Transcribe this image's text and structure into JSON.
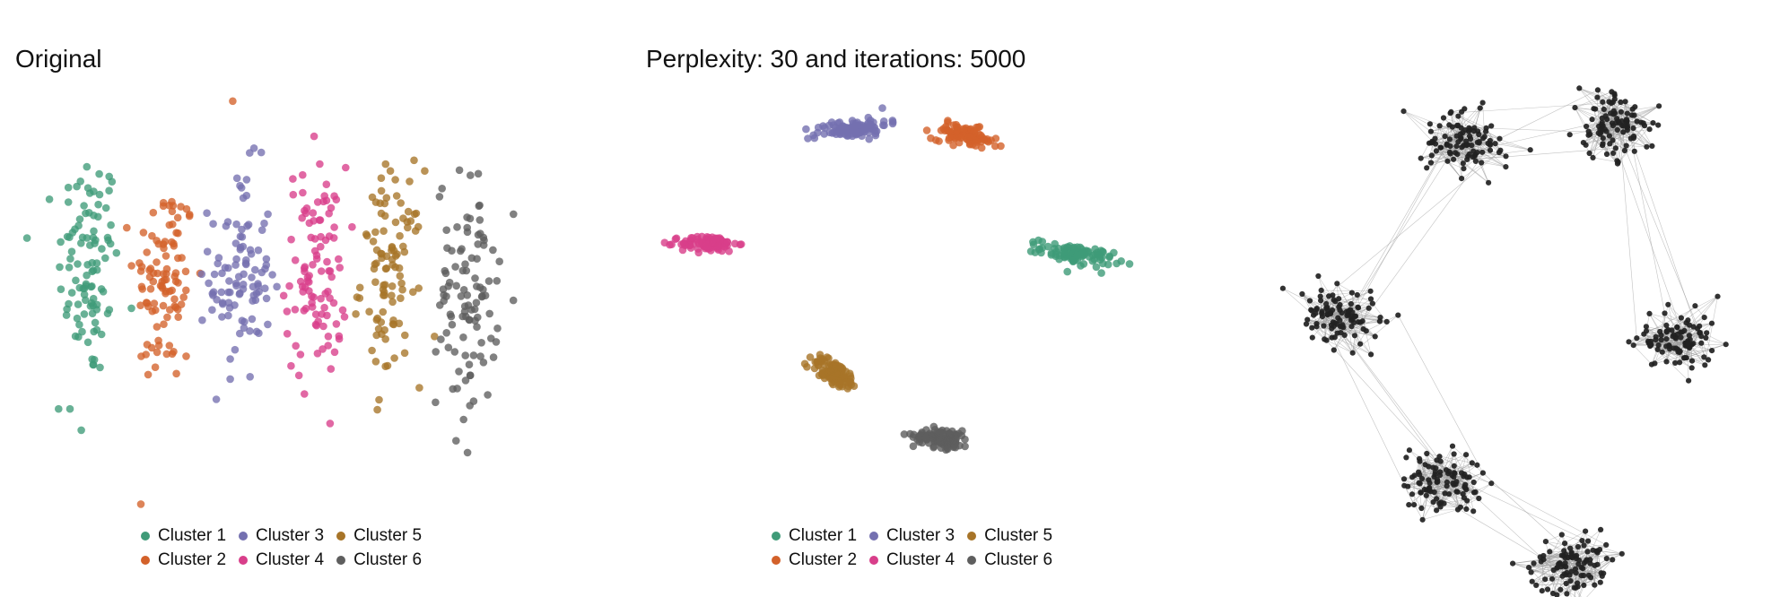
{
  "colors": {
    "Cluster 1": "#3f9b78",
    "Cluster 2": "#d3612a",
    "Cluster 3": "#7470b0",
    "Cluster 4": "#d83e8a",
    "Cluster 5": "#a77428",
    "Cluster 6": "#5e5e5e",
    "graph_node": "#222222",
    "graph_edge": "#9a9a9a"
  },
  "chart_data": [
    {
      "type": "scatter",
      "title": "Original",
      "xlabel": "",
      "ylabel": "",
      "axes_visible": false,
      "grid": false,
      "legend_position": "bottom",
      "legend": [
        "Cluster 1",
        "Cluster 2",
        "Cluster 3",
        "Cluster 4",
        "Cluster 5",
        "Cluster 6"
      ],
      "approx_points_per_series": 100,
      "series": [
        {
          "name": "Cluster 1",
          "x_center": 1,
          "x_spread": 0.45,
          "y_center": 0.2,
          "y_spread": 0.55
        },
        {
          "name": "Cluster 2",
          "x_center": 2,
          "x_spread": 0.45,
          "y_center": 0.05,
          "y_spread": 0.5
        },
        {
          "name": "Cluster 3",
          "x_center": 3,
          "x_spread": 0.45,
          "y_center": 0.1,
          "y_spread": 0.5
        },
        {
          "name": "Cluster 4",
          "x_center": 4,
          "x_spread": 0.45,
          "y_center": 0.15,
          "y_spread": 0.5
        },
        {
          "name": "Cluster 5",
          "x_center": 5,
          "x_spread": 0.45,
          "y_center": 0.1,
          "y_spread": 0.5
        },
        {
          "name": "Cluster 6",
          "x_center": 6,
          "x_spread": 0.45,
          "y_center": -0.05,
          "y_spread": 0.55
        }
      ],
      "xlim": [
        0.3,
        6.7
      ],
      "ylim": [
        -1.9,
        1.9
      ],
      "outliers": [
        {
          "series": "Cluster 2",
          "x": 2.9,
          "y": 1.75
        },
        {
          "series": "Cluster 1",
          "x": 0.6,
          "y": -1.15
        },
        {
          "series": "Cluster 1",
          "x": 0.75,
          "y": -1.15
        },
        {
          "series": "Cluster 1",
          "x": 0.9,
          "y": -1.35
        },
        {
          "series": "Cluster 6",
          "x": 5.85,
          "y": -1.45
        },
        {
          "series": "Cluster 6",
          "x": 5.95,
          "y": -1.25
        }
      ]
    },
    {
      "type": "scatter",
      "title": "Perplexity: 30 and iterations: 5000",
      "xlabel": "",
      "ylabel": "",
      "axes_visible": false,
      "grid": false,
      "legend_position": "bottom",
      "legend": [
        "Cluster 1",
        "Cluster 2",
        "Cluster 3",
        "Cluster 4",
        "Cluster 5",
        "Cluster 6"
      ],
      "approx_points_per_series": 100,
      "series": [
        {
          "name": "Cluster 1",
          "x_center": 38,
          "y_center": 3,
          "x_spread": 9,
          "y_spread": 3,
          "tilt": -0.2
        },
        {
          "name": "Cluster 2",
          "x_center": 13,
          "y_center": 36,
          "x_spread": 8,
          "y_spread": 3,
          "tilt": -0.25
        },
        {
          "name": "Cluster 3",
          "x_center": -12,
          "y_center": 38,
          "x_spread": 9,
          "y_spread": 3,
          "tilt": 0.15
        },
        {
          "name": "Cluster 4",
          "x_center": -44,
          "y_center": 6,
          "x_spread": 7,
          "y_spread": 2.5,
          "tilt": 0
        },
        {
          "name": "Cluster 5",
          "x_center": -16,
          "y_center": -30,
          "x_spread": 6,
          "y_spread": 4,
          "tilt": -0.45
        },
        {
          "name": "Cluster 6",
          "x_center": 8,
          "y_center": -48,
          "x_spread": 7,
          "y_spread": 3,
          "tilt": -0.15
        }
      ],
      "xlim": [
        -55,
        55
      ],
      "ylim": [
        -62,
        50
      ]
    },
    {
      "type": "network",
      "title": "",
      "approx_nodes_per_group": 100,
      "groups": [
        {
          "x": 0.3,
          "y": 0.15
        },
        {
          "x": 0.58,
          "y": 0.12
        },
        {
          "x": 0.7,
          "y": 0.48
        },
        {
          "x": 0.06,
          "y": 0.44
        },
        {
          "x": 0.25,
          "y": 0.72
        },
        {
          "x": 0.5,
          "y": 0.86
        }
      ],
      "inter_group_links": [
        [
          0,
          1
        ],
        [
          0,
          3
        ],
        [
          1,
          2
        ],
        [
          3,
          4
        ],
        [
          4,
          5
        ]
      ]
    }
  ]
}
